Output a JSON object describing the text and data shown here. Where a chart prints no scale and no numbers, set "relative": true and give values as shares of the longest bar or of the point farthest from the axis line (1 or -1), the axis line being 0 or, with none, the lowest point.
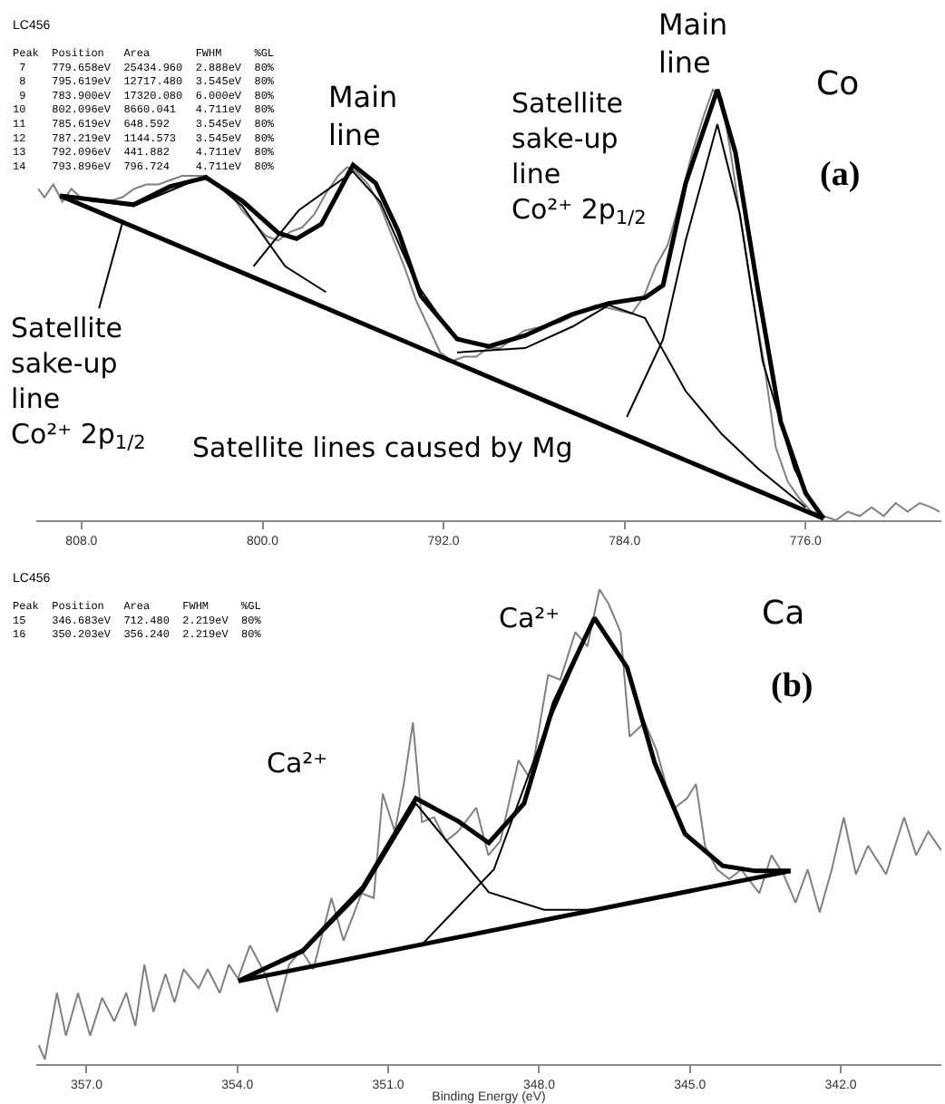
{
  "chart_data": [
    {
      "type": "line",
      "relative": true,
      "tick_labels": "x",
      "marker": "none",
      "line_style": "solid",
      "xlim": [
        810,
        770
      ],
      "xticks": [
        {
          "value": 808,
          "label": "808.0"
        },
        {
          "value": 800,
          "label": "800.0"
        },
        {
          "value": 792,
          "label": "792.0"
        },
        {
          "value": 784,
          "label": "784.0"
        },
        {
          "value": 776,
          "label": "776.0"
        }
      ],
      "annotations": [
        "LC456",
        "Peak  Position   Area       FWHM     %GL\n 7    779.658eV  25434.960  2.888eV  80%\n 8    795.619eV  12717.480  3.545eV  80%\n 9    783.900eV  17320.080  6.000eV  80%\n10    802.096eV  8660.041   4.711eV  80%\n11    785.619eV  648.592    3.545eV  80%\n12    787.219eV  1144.573   3.545eV  80%\n13    792.096eV  441.882    4.711eV  80%\n14    793.896eV  796.724    4.711eV  80%",
        {
          "text": "Main\nline",
          "x": 795.6,
          "y": 0.83
        },
        {
          "text": "Main\nline",
          "x": 779.9,
          "y": 1.0
        },
        "Satellite\nsake-up\nline\nCo²⁺ 2p$_{1/2}$",
        {
          "text": "Satellite\nsake-up\nline\nCo²⁺ 2p$_{1/2}$",
          "x": 806.2,
          "y": 0.69
        },
        "Satellite lines caused by Mg",
        "Co",
        "(a)"
      ],
      "series": [
        {
          "type": "line",
          "color": "#808080",
          "x": [
            809.91,
            809.64,
            809.25,
            808.85,
            808.45,
            808.05,
            807.52,
            806.86,
            806.2,
            805.67,
            805.14,
            804.61,
            804.08,
            803.55,
            803.02,
            802.49,
            801.96,
            801.43,
            800.9,
            800.37,
            799.84,
            799.31,
            798.78,
            798.25,
            797.72,
            797.19,
            796.66,
            796.26,
            795.86,
            795.33,
            794.8,
            794.27,
            793.74,
            793.21,
            792.68,
            792.15,
            791.62,
            791.09,
            790.56,
            790.03,
            789.5,
            788.98,
            788.45,
            787.65,
            786.86,
            786.06,
            785.27,
            784.47,
            783.68,
            783.15,
            782.62,
            782.09,
            781.56,
            781.03,
            780.5,
            780.1,
            779.7,
            779.3,
            778.91,
            778.38,
            777.85,
            777.32,
            776.79,
            776.26,
            775.73,
            775.2,
            774.67,
            774.14,
            773.61,
            773.08,
            772.55,
            772.02,
            771.49,
            770.96,
            770.43,
            770.08
          ],
          "values": [
            0.77,
            0.75,
            0.78,
            0.74,
            0.77,
            0.75,
            0.74,
            0.74,
            0.75,
            0.77,
            0.78,
            0.78,
            0.79,
            0.8,
            0.8,
            0.8,
            0.78,
            0.76,
            0.72,
            0.69,
            0.66,
            0.65,
            0.67,
            0.68,
            0.71,
            0.76,
            0.8,
            0.82,
            0.81,
            0.78,
            0.73,
            0.66,
            0.59,
            0.51,
            0.45,
            0.39,
            0.37,
            0.38,
            0.38,
            0.4,
            0.4,
            0.42,
            0.44,
            0.45,
            0.46,
            0.48,
            0.5,
            0.49,
            0.48,
            0.52,
            0.59,
            0.64,
            0.74,
            0.85,
            0.94,
            1.0,
            0.98,
            0.85,
            0.71,
            0.53,
            0.37,
            0.17,
            0.09,
            0.05,
            0.02,
            0.01,
            0.0,
            0.02,
            0.01,
            0.03,
            0.01,
            0.04,
            0.02,
            0.04,
            0.03,
            0.02
          ]
        },
        {
          "type": "line",
          "color": "#000000",
          "x": [
            808.95,
            805.7,
            804.1,
            802.5,
            800.9,
            799.3,
            798.5,
            797.4,
            796.0,
            795.0,
            794.0,
            793.0,
            791.4,
            790.0,
            788.4,
            786.3,
            784.7,
            783.1,
            782.3,
            781.3,
            779.9,
            779.1,
            778.1,
            777.1,
            776.0,
            775.2
          ],
          "values": [
            0.754,
            0.733,
            0.775,
            0.796,
            0.742,
            0.667,
            0.654,
            0.688,
            0.825,
            0.783,
            0.671,
            0.521,
            0.421,
            0.404,
            0.429,
            0.479,
            0.504,
            0.517,
            0.546,
            0.783,
            1.0,
            0.854,
            0.533,
            0.229,
            0.063,
            0.004
          ]
        },
        {
          "type": "line",
          "color": "#000000",
          "x": [
            808.95,
            775.2
          ],
          "values": [
            0.754,
            0.004
          ]
        },
        {
          "type": "line",
          "color": "#000000",
          "x": [
            808.95,
            805.7,
            802.5,
            800.9,
            799.0,
            797.2
          ],
          "values": [
            0.754,
            0.73,
            0.8,
            0.73,
            0.59,
            0.53
          ]
        },
        {
          "type": "line",
          "color": "#000000",
          "x": [
            800.4,
            798.4,
            796.0,
            794.8,
            793.2,
            791.6
          ],
          "values": [
            0.59,
            0.72,
            0.81,
            0.74,
            0.55,
            0.43
          ]
        },
        {
          "type": "line",
          "color": "#000000",
          "x": [
            791.4,
            788.4,
            786.3,
            784.7,
            783.1,
            781.3,
            779.7,
            778.1,
            776.0
          ],
          "values": [
            0.39,
            0.4,
            0.45,
            0.5,
            0.47,
            0.3,
            0.2,
            0.12,
            0.03
          ]
        },
        {
          "type": "line",
          "color": "#000000",
          "x": [
            783.9,
            782.3,
            781.3,
            779.9,
            778.9,
            777.9,
            776.5,
            775.5
          ],
          "values": [
            0.24,
            0.42,
            0.65,
            0.92,
            0.71,
            0.37,
            0.12,
            0.02
          ]
        }
      ]
    },
    {
      "type": "line",
      "relative": true,
      "tick_labels": "x",
      "marker": "none",
      "line_style": "solid",
      "xlabel": "Binding Energy (eV)",
      "xlim": [
        358,
        340
      ],
      "xticks": [
        {
          "value": 357,
          "label": "357.0"
        },
        {
          "value": 354,
          "label": "354.0"
        },
        {
          "value": 351,
          "label": "351.0"
        },
        {
          "value": 348,
          "label": "348.0"
        },
        {
          "value": 345,
          "label": "345.0"
        },
        {
          "value": 342,
          "label": "342.0"
        }
      ],
      "annotations": [
        "LC456",
        "Peak  Position   Area     FWHM     %GL\n15    346.683eV  712.480  2.219eV  80%\n16    350.203eV  356.240  2.219eV  80%",
        "Ca²⁺",
        "Ca²⁺",
        "Ca",
        "(b)"
      ],
      "series": [
        {
          "type": "line",
          "color": "#808080",
          "x": [
            357.95,
            357.83,
            357.59,
            357.41,
            357.17,
            356.93,
            356.69,
            356.45,
            356.21,
            356.03,
            355.85,
            355.67,
            355.43,
            355.25,
            355.07,
            354.77,
            354.59,
            354.35,
            354.17,
            353.99,
            353.75,
            353.45,
            353.21,
            352.97,
            352.73,
            352.49,
            352.13,
            351.89,
            351.53,
            351.29,
            351.11,
            350.87,
            350.69,
            350.51,
            350.33,
            350.09,
            349.85,
            349.61,
            349.25,
            349.01,
            348.77,
            348.41,
            348.17,
            347.82,
            347.58,
            347.28,
            347.04,
            346.8,
            346.62,
            346.38,
            346.2,
            345.9,
            345.66,
            345.48,
            345.3,
            345.06,
            344.88,
            344.7,
            344.46,
            344.22,
            343.98,
            343.62,
            343.38,
            343.14,
            342.9,
            342.66,
            342.42,
            342.18,
            341.94,
            341.7,
            341.46,
            341.1,
            340.74,
            340.5,
            340.26,
            340.0
          ],
          "values": [
            0.04,
            0.01,
            0.15,
            0.06,
            0.15,
            0.06,
            0.14,
            0.09,
            0.15,
            0.08,
            0.21,
            0.11,
            0.19,
            0.13,
            0.2,
            0.16,
            0.2,
            0.15,
            0.21,
            0.18,
            0.25,
            0.19,
            0.11,
            0.21,
            0.24,
            0.2,
            0.35,
            0.26,
            0.36,
            0.35,
            0.57,
            0.49,
            0.59,
            0.72,
            0.51,
            0.52,
            0.47,
            0.49,
            0.54,
            0.44,
            0.47,
            0.64,
            0.6,
            0.82,
            0.81,
            0.91,
            0.88,
            1.0,
            0.97,
            0.91,
            0.69,
            0.72,
            0.66,
            0.59,
            0.54,
            0.56,
            0.59,
            0.46,
            0.41,
            0.39,
            0.41,
            0.36,
            0.44,
            0.4,
            0.34,
            0.41,
            0.32,
            0.41,
            0.52,
            0.4,
            0.46,
            0.4,
            0.52,
            0.44,
            0.49,
            0.45
          ]
        },
        {
          "type": "line",
          "color": "#000000",
          "x": [
            353.98,
            352.7,
            351.5,
            350.45,
            349.6,
            349.0,
            348.3,
            347.7,
            346.9,
            346.25,
            345.7,
            345.1,
            344.35,
            343.7,
            343.0
          ],
          "values": [
            0.175,
            0.239,
            0.373,
            0.56,
            0.511,
            0.466,
            0.549,
            0.761,
            0.94,
            0.836,
            0.634,
            0.485,
            0.418,
            0.407,
            0.407
          ]
        },
        {
          "type": "line",
          "color": "#000000",
          "x": [
            353.98,
            343.0
          ],
          "values": [
            0.175,
            0.407
          ]
        },
        {
          "type": "line",
          "color": "#000000",
          "x": [
            353.98,
            352.7,
            351.5,
            350.45,
            349.0,
            347.9,
            346.75
          ],
          "values": [
            0.175,
            0.235,
            0.365,
            0.549,
            0.362,
            0.325,
            0.325
          ]
        },
        {
          "type": "line",
          "color": "#000000",
          "x": [
            350.35,
            348.9,
            347.9,
            346.9,
            346.25,
            345.7,
            345.1,
            344.35,
            343.7
          ],
          "values": [
            0.25,
            0.41,
            0.698,
            0.94,
            0.836,
            0.634,
            0.485,
            0.418,
            0.407
          ]
        }
      ]
    }
  ]
}
